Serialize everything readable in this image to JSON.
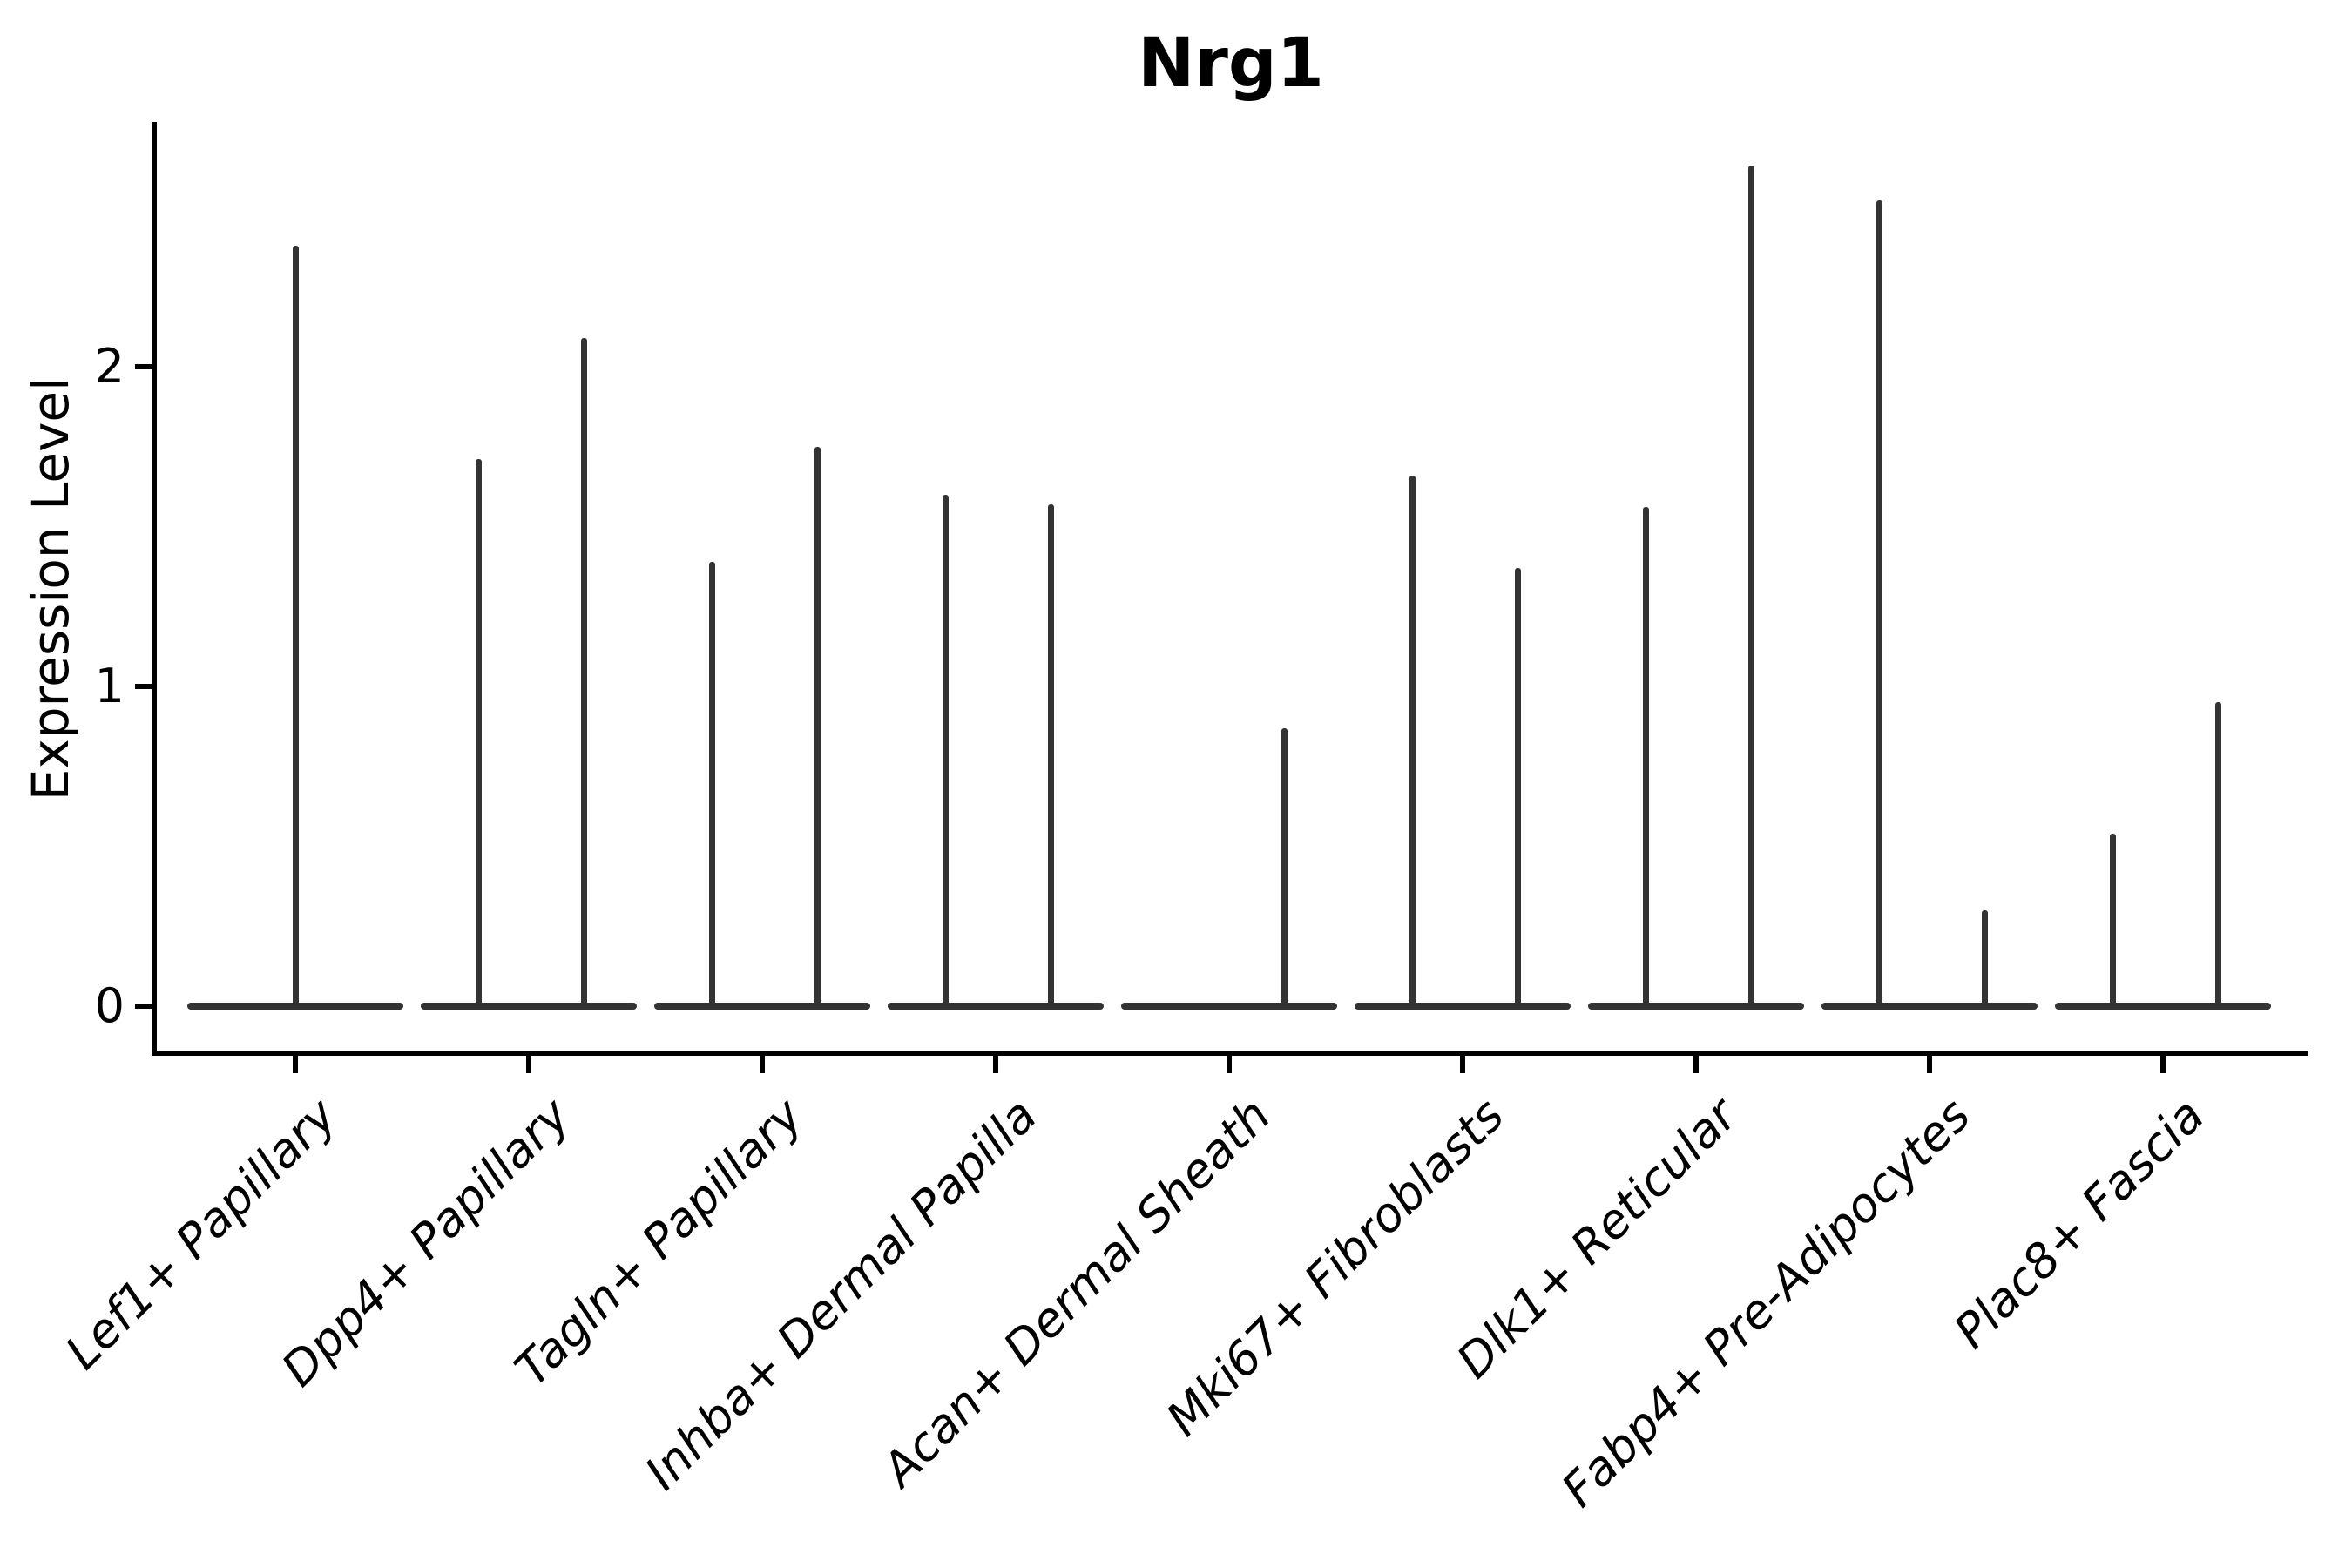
{
  "figure": {
    "title": "Nrg1",
    "background_color": "#ffffff",
    "ink_color": "#000000",
    "violin_color": "#333333"
  },
  "y_axis": {
    "label": "Expression Level",
    "ticks": [
      {
        "value": 0,
        "label": "0"
      },
      {
        "value": 1,
        "label": "1"
      },
      {
        "value": 2,
        "label": "2"
      }
    ]
  },
  "x_axis": {
    "categories": [
      "Lef1+ Papillary",
      "Dpp4+ Papillary",
      "Tagln+ Papillary",
      "Inhba+ Dermal Papilla",
      "Acan+ Dermal Sheath",
      "Mki67+ Fibroblasts",
      "Dlk1+ Reticular",
      "Fabp4+ Pre-Adipocytes",
      "Plac8+ Fascia"
    ]
  },
  "chart_data": {
    "type": "violin",
    "title": "Nrg1",
    "xlabel": "",
    "ylabel": "Expression Level",
    "ylim": [
      -0.15,
      2.77
    ],
    "yticks": [
      0,
      1,
      2
    ],
    "grid": false,
    "legend": null,
    "description": "Violin plot of Nrg1 expression; each violin is a flat mass at 0 with a thin density spike rising to the group maximum. Most categories contain two violins (left/right slots).",
    "baseline_value": 0,
    "categories": [
      "Lef1+ Papillary",
      "Dpp4+ Papillary",
      "Tagln+ Papillary",
      "Inhba+ Dermal Papilla",
      "Acan+ Dermal Sheath",
      "Mki67+ Fibroblasts",
      "Dlk1+ Reticular",
      "Fabp4+ Pre-Adipocytes",
      "Plac8+ Fascia"
    ],
    "violins": [
      {
        "category": "Lef1+ Papillary",
        "spikes": [
          {
            "slot": "center",
            "max": 2.38
          }
        ]
      },
      {
        "category": "Dpp4+ Papillary",
        "spikes": [
          {
            "slot": "left",
            "max": 1.71
          },
          {
            "slot": "right",
            "max": 2.09
          }
        ]
      },
      {
        "category": "Tagln+ Papillary",
        "spikes": [
          {
            "slot": "left",
            "max": 1.39
          },
          {
            "slot": "right",
            "max": 1.75
          }
        ]
      },
      {
        "category": "Inhba+ Dermal Papilla",
        "spikes": [
          {
            "slot": "left",
            "max": 1.6
          },
          {
            "slot": "right",
            "max": 1.57
          }
        ]
      },
      {
        "category": "Acan+ Dermal Sheath",
        "spikes": [
          {
            "slot": "right",
            "max": 0.87
          }
        ]
      },
      {
        "category": "Mki67+ Fibroblasts",
        "spikes": [
          {
            "slot": "left",
            "max": 1.66
          },
          {
            "slot": "right",
            "max": 1.37
          }
        ]
      },
      {
        "category": "Dlk1+ Reticular",
        "spikes": [
          {
            "slot": "left",
            "max": 1.56
          },
          {
            "slot": "right",
            "max": 2.63
          }
        ]
      },
      {
        "category": "Fabp4+ Pre-Adipocytes",
        "spikes": [
          {
            "slot": "left",
            "max": 2.52
          },
          {
            "slot": "right",
            "max": 0.3
          }
        ]
      },
      {
        "category": "Plac8+ Fascia",
        "spikes": [
          {
            "slot": "left",
            "max": 0.54
          },
          {
            "slot": "right",
            "max": 0.95
          }
        ]
      }
    ]
  }
}
